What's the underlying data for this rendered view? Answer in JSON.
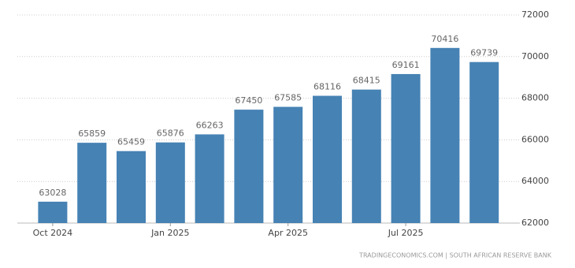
{
  "chart_data": {
    "type": "bar",
    "categories": [
      "Oct 2024",
      null,
      null,
      "Jan 2025",
      null,
      null,
      "Apr 2025",
      null,
      null,
      "Jul 2025",
      null,
      null
    ],
    "values": [
      63028,
      65859,
      65459,
      65876,
      66263,
      67450,
      67585,
      68116,
      68415,
      69161,
      70416,
      69739
    ],
    "color": "#4682b4",
    "ylim": [
      62000,
      72000
    ],
    "yticks": [
      62000,
      64000,
      66000,
      68000,
      70000,
      72000
    ],
    "grid": true,
    "source": "TRADINGECONOMICS.COM | SOUTH AFRICAN RESERVE BANK"
  }
}
